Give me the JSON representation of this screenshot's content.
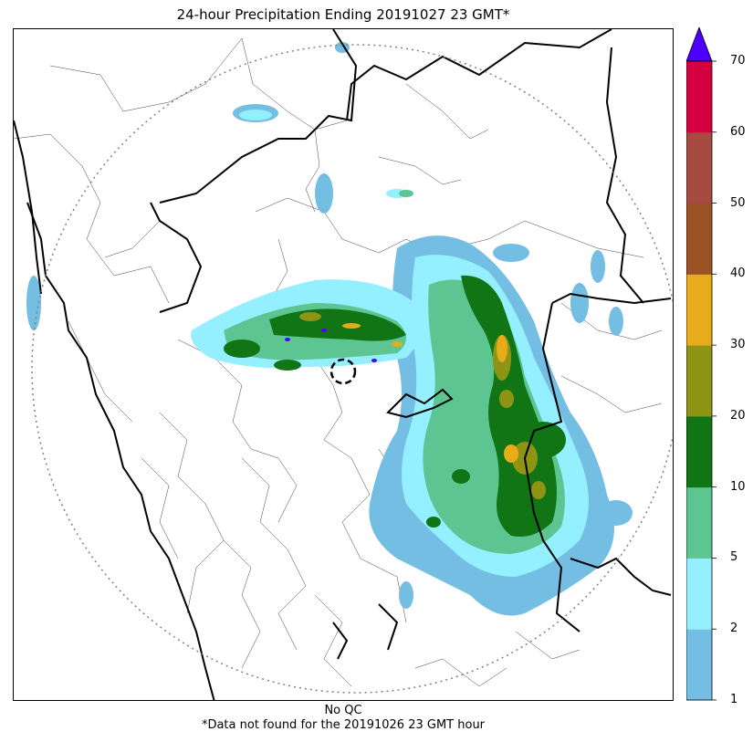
{
  "title": "24-hour Precipitation Ending 20191027 23 GMT*",
  "footer": {
    "qc_note": "No QC",
    "missing_note": "*Data not found for the 20191026 23 GMT hour"
  },
  "colorbar": {
    "ticks": [
      "1",
      "2",
      "5",
      "10",
      "20",
      "30",
      "40",
      "50",
      "60",
      "70"
    ],
    "colors": [
      "#74bde3",
      "#94efff",
      "#5dc592",
      "#117515",
      "#8e9515",
      "#e8ab1a",
      "#9b5326",
      "#a74a41",
      "#d4003f"
    ],
    "extend_color": "#4b00ff"
  },
  "map": {
    "radar_range_ring": "dotted",
    "radar_site_marker": "dashed-circle",
    "layers": [
      "country-borders",
      "state-borders",
      "district-borders",
      "coastline",
      "precipitation"
    ]
  }
}
